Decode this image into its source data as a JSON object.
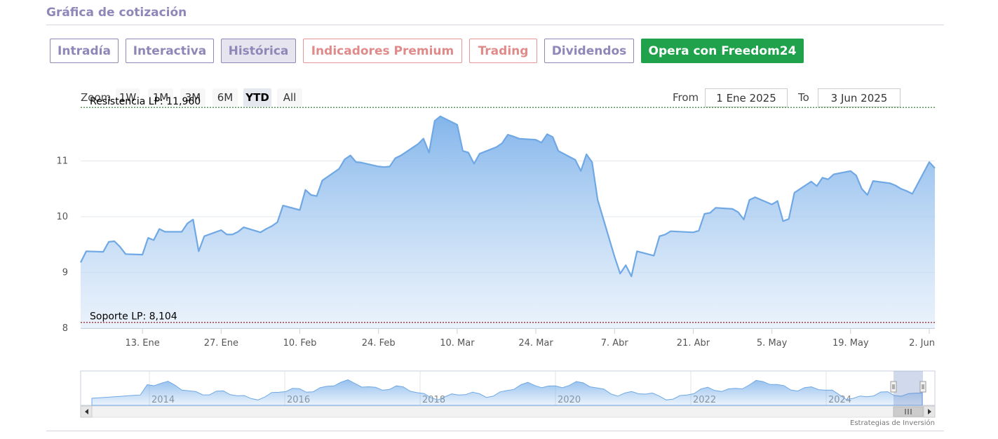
{
  "header": {
    "title": "Gráfica de cotización"
  },
  "tabs": [
    {
      "label": "Intradía",
      "style": "normal"
    },
    {
      "label": "Interactiva",
      "style": "normal"
    },
    {
      "label": "Histórica",
      "style": "active"
    },
    {
      "label": "Indicadores Premium",
      "style": "premium"
    },
    {
      "label": "Trading",
      "style": "premium"
    },
    {
      "label": "Dividendos",
      "style": "normal"
    },
    {
      "label": "Opera con Freedom24",
      "style": "cta"
    }
  ],
  "range_selector": {
    "zoom_label": "Zoom",
    "buttons": [
      "1W",
      "1M",
      "3M",
      "6M",
      "YTD",
      "All"
    ],
    "selected": "YTD",
    "from_label": "From",
    "from_value": "1 Ene 2025",
    "to_label": "To",
    "to_value": "3 Jun 2025"
  },
  "chart_data": {
    "type": "area",
    "xlabel": "",
    "ylabel": "",
    "ylim": [
      8,
      12
    ],
    "x_ticks": [
      "13. Ene",
      "27. Ene",
      "10. Feb",
      "24. Feb",
      "10. Mar",
      "24. Mar",
      "7. Abr",
      "21. Abr",
      "5. May",
      "19. May",
      "2. Jun"
    ],
    "y_ticks": [
      8,
      9,
      10,
      11
    ],
    "grid": true,
    "series": [
      {
        "x": [
          "2025-01-02",
          "2025-01-03",
          "2025-01-06",
          "2025-01-07",
          "2025-01-08",
          "2025-01-09",
          "2025-01-10",
          "2025-01-13",
          "2025-01-14",
          "2025-01-15",
          "2025-01-16",
          "2025-01-17",
          "2025-01-20",
          "2025-01-21",
          "2025-01-22",
          "2025-01-23",
          "2025-01-24",
          "2025-01-27",
          "2025-01-28",
          "2025-01-29",
          "2025-01-30",
          "2025-01-31",
          "2025-02-03",
          "2025-02-04",
          "2025-02-05",
          "2025-02-06",
          "2025-02-07",
          "2025-02-10",
          "2025-02-11",
          "2025-02-12",
          "2025-02-13",
          "2025-02-14",
          "2025-02-17",
          "2025-02-18",
          "2025-02-19",
          "2025-02-20",
          "2025-02-21",
          "2025-02-24",
          "2025-02-25",
          "2025-02-26",
          "2025-02-27",
          "2025-02-28",
          "2025-03-03",
          "2025-03-04",
          "2025-03-05",
          "2025-03-06",
          "2025-03-07",
          "2025-03-10",
          "2025-03-11",
          "2025-03-12",
          "2025-03-13",
          "2025-03-14",
          "2025-03-17",
          "2025-03-18",
          "2025-03-19",
          "2025-03-20",
          "2025-03-21",
          "2025-03-24",
          "2025-03-25",
          "2025-03-26",
          "2025-03-27",
          "2025-03-28",
          "2025-03-31",
          "2025-04-01",
          "2025-04-02",
          "2025-04-03",
          "2025-04-04",
          "2025-04-07",
          "2025-04-08",
          "2025-04-09",
          "2025-04-10",
          "2025-04-11",
          "2025-04-14",
          "2025-04-15",
          "2025-04-16",
          "2025-04-17",
          "2025-04-21",
          "2025-04-22",
          "2025-04-23",
          "2025-04-24",
          "2025-04-25",
          "2025-04-28",
          "2025-04-29",
          "2025-04-30",
          "2025-05-01",
          "2025-05-02",
          "2025-05-05",
          "2025-05-06",
          "2025-05-07",
          "2025-05-08",
          "2025-05-09",
          "2025-05-12",
          "2025-05-13",
          "2025-05-14",
          "2025-05-15",
          "2025-05-16",
          "2025-05-19",
          "2025-05-20",
          "2025-05-21",
          "2025-05-22",
          "2025-05-23",
          "2025-05-26",
          "2025-05-27",
          "2025-05-28",
          "2025-05-29",
          "2025-05-30",
          "2025-06-02",
          "2025-06-03"
        ],
        "values": [
          9.18,
          9.38,
          9.37,
          9.55,
          9.56,
          9.46,
          9.33,
          9.32,
          9.62,
          9.58,
          9.78,
          9.73,
          9.73,
          9.88,
          9.95,
          9.38,
          9.65,
          9.76,
          9.68,
          9.68,
          9.73,
          9.81,
          9.72,
          9.78,
          9.83,
          9.9,
          10.2,
          10.12,
          10.48,
          10.39,
          10.37,
          10.65,
          10.86,
          11.03,
          11.1,
          10.98,
          10.97,
          10.9,
          10.89,
          10.9,
          11.05,
          11.1,
          11.3,
          11.4,
          11.15,
          11.72,
          11.8,
          11.65,
          11.18,
          11.15,
          10.95,
          11.13,
          11.25,
          11.32,
          11.47,
          11.44,
          11.4,
          11.38,
          11.33,
          11.48,
          11.43,
          11.18,
          11.02,
          10.82,
          11.12,
          10.98,
          10.3,
          9.28,
          8.98,
          9.13,
          8.93,
          9.38,
          9.3,
          9.65,
          9.68,
          9.74,
          9.72,
          9.75,
          10.05,
          10.07,
          10.16,
          10.14,
          10.08,
          9.95,
          10.3,
          10.35,
          10.22,
          10.28,
          9.92,
          9.96,
          10.43,
          10.63,
          10.55,
          10.7,
          10.67,
          10.76,
          10.82,
          10.74,
          10.5,
          10.39,
          10.64,
          10.6,
          10.56,
          10.5,
          10.46,
          10.41,
          10.98,
          10.87
        ]
      }
    ],
    "annotations": [
      {
        "label": "Resistencia LP: 11,960",
        "value": 11.96,
        "color": "#1e7a1e"
      },
      {
        "label": "Soporte LP: 8,104",
        "value": 8.104,
        "color": "#a02020"
      }
    ],
    "navigator": {
      "x_labels": [
        "2014",
        "2016",
        "2018",
        "2020",
        "2022",
        "2024"
      ]
    }
  },
  "credits": "Estrategias de Inversión",
  "icons": {
    "scroll_left": "chevron-left-icon",
    "scroll_right": "chevron-right-icon",
    "scroll_thumb": "grip-icon",
    "handles": "drag-handle-icon"
  }
}
